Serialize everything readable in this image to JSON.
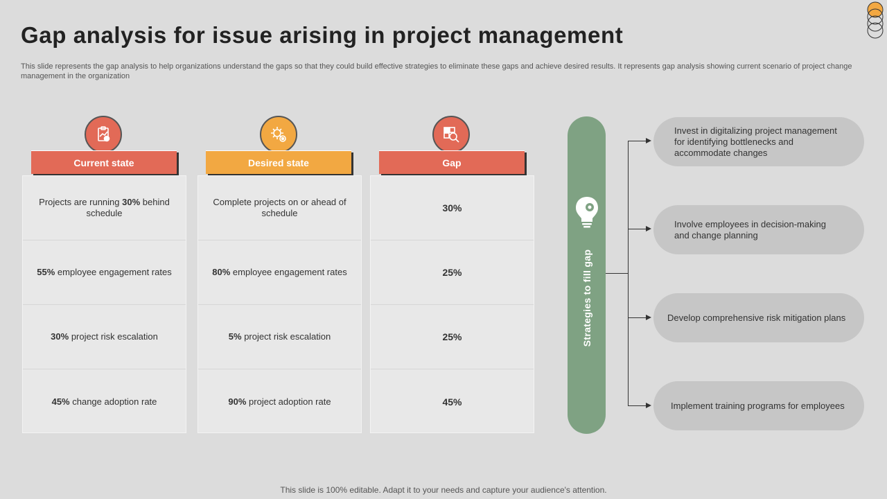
{
  "title": "Gap analysis for issue arising in project management",
  "subtitle": "This slide represents the gap analysis to help organizations understand the gaps so that they could build effective strategies to eliminate these gaps and achieve desired results. It represents gap analysis showing current scenario of  project change management in the organization",
  "columns": [
    {
      "header": "Current state",
      "icon": "report-icon",
      "rows": [
        {
          "pre": "Projects are running ",
          "bold": "30%",
          "post": " behind schedule"
        },
        {
          "pre": "",
          "bold": "55%",
          "post": " employee engagement rates"
        },
        {
          "pre": "",
          "bold": "30%",
          "post": " project risk escalation"
        },
        {
          "pre": "",
          "bold": "45%",
          "post": " change adoption rate"
        }
      ]
    },
    {
      "header": "Desired state",
      "icon": "gears-target-icon",
      "rows": [
        {
          "pre": "Complete projects on or ahead of schedule",
          "bold": "",
          "post": ""
        },
        {
          "pre": "",
          "bold": "80%",
          "post": " employee engagement rates"
        },
        {
          "pre": "",
          "bold": "5%",
          "post": " project risk escalation"
        },
        {
          "pre": "",
          "bold": "90%",
          "post": " project adoption rate"
        }
      ]
    },
    {
      "header": "Gap",
      "icon": "puzzle-search-icon",
      "rows": [
        "30%",
        "25%",
        "25%",
        "45%"
      ]
    }
  ],
  "strategy_label": "Strategies to fill gap",
  "strategy_icon": "lightbulb-gear-icon",
  "strategies": [
    "Invest  in digitalizing project management for identifying bottlenecks and accommodate changes",
    "Involve  employees in decision-making and change planning",
    "Develop  comprehensive  risk mitigation plans",
    "Implement  training programs for employees"
  ],
  "footer": "This slide is 100% editable. Adapt it to your needs and capture your audience's attention.",
  "colors": {
    "red": "#e26a57",
    "orange": "#f2a842",
    "green": "#7fa283",
    "background": "#dcdcdc"
  }
}
